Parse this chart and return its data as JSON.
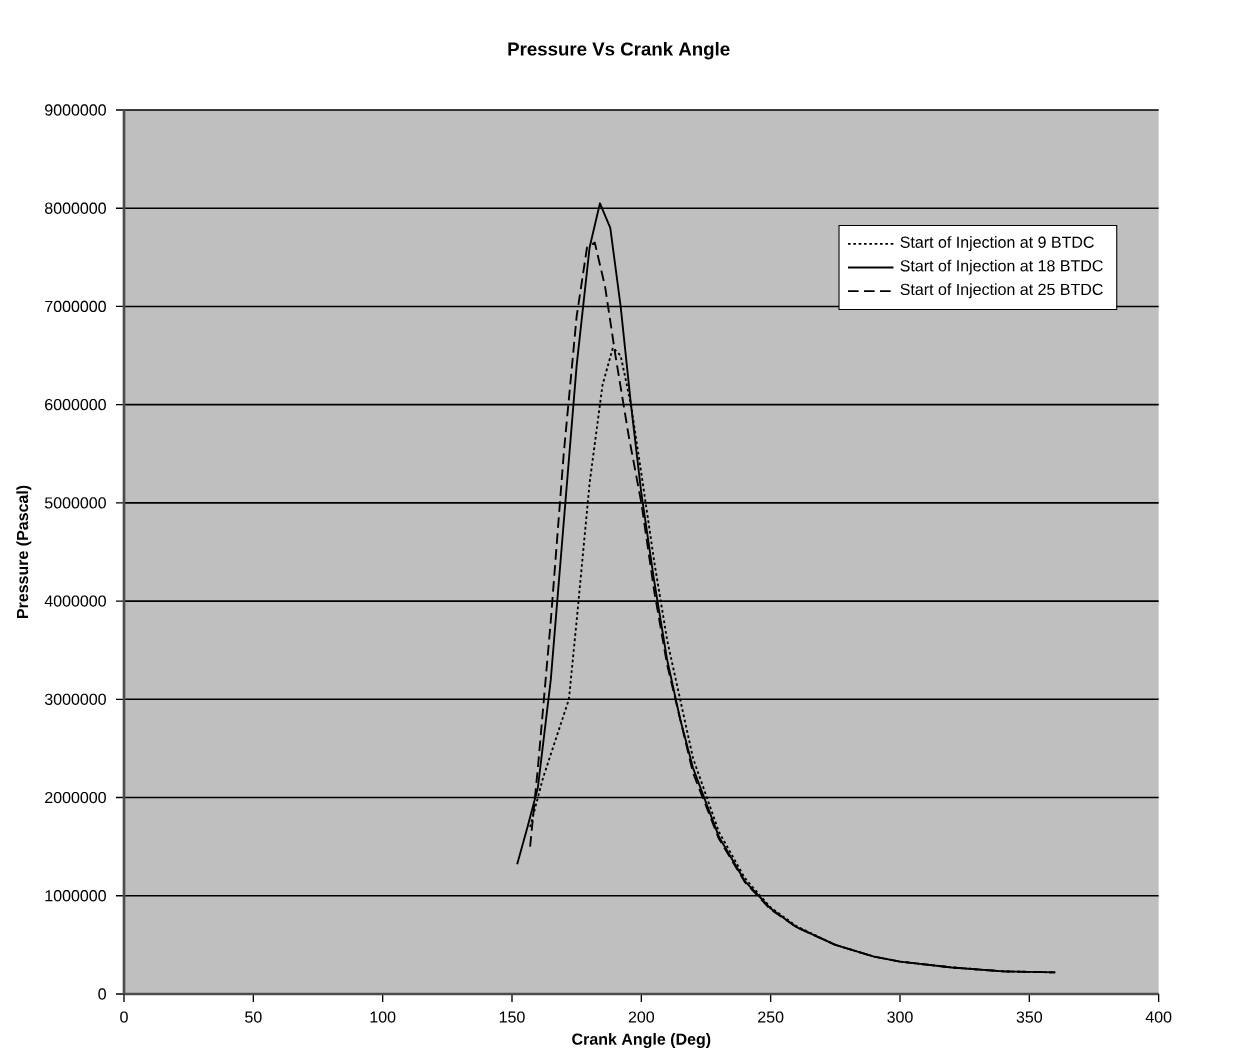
{
  "chart_data": {
    "type": "line",
    "title": "Pressure Vs Crank Angle",
    "xlabel": "Crank Angle (Deg)",
    "ylabel": "Pressure (Pascal)",
    "xlim": [
      0,
      400
    ],
    "xticks": [
      0,
      50,
      100,
      150,
      200,
      250,
      300,
      350,
      400
    ],
    "ylim": [
      0,
      9000000
    ],
    "yticks": [
      0,
      1000000,
      2000000,
      3000000,
      4000000,
      5000000,
      6000000,
      7000000,
      8000000,
      9000000
    ],
    "grid": "y",
    "legend": "top right",
    "marker": "none",
    "series": [
      {
        "name": "Start of Injection at 9 BTDC",
        "color": "#000000",
        "line_style": "dotted",
        "x": [
          157,
          162,
          167,
          172,
          175,
          180,
          185,
          189,
          192,
          196,
          200,
          205,
          210,
          220,
          230,
          240,
          250,
          260,
          275,
          290,
          300,
          320,
          340,
          360
        ],
        "values": [
          1700000,
          2200000,
          2600000,
          3000000,
          3800000,
          5200000,
          6200000,
          6580000,
          6500000,
          6000000,
          5300000,
          4400000,
          3600000,
          2400000,
          1650000,
          1180000,
          880000,
          690000,
          500000,
          380000,
          330000,
          270000,
          230000,
          220000
        ]
      },
      {
        "name": "Start of Injection at 18 BTDC",
        "color": "#000000",
        "line_style": "solid",
        "x": [
          152,
          156,
          160,
          165,
          170,
          175,
          180,
          184,
          188,
          192,
          196,
          200,
          205,
          210,
          215,
          220,
          230,
          240,
          250,
          260,
          275,
          290,
          300,
          320,
          340,
          360
        ],
        "values": [
          1320000,
          1700000,
          2100000,
          3200000,
          4800000,
          6400000,
          7600000,
          8050000,
          7800000,
          7000000,
          6000000,
          5100000,
          4200000,
          3400000,
          2800000,
          2300000,
          1600000,
          1150000,
          870000,
          680000,
          500000,
          380000,
          330000,
          270000,
          230000,
          220000
        ]
      },
      {
        "name": "Start of Injection at 25 BTDC",
        "color": "#000000",
        "line_style": "dashed",
        "x": [
          157,
          160,
          165,
          170,
          175,
          179,
          182,
          186,
          190,
          195,
          200,
          205,
          210,
          220,
          230,
          240,
          250,
          260,
          275,
          290,
          300,
          320,
          340,
          360
        ],
        "values": [
          1500000,
          2300000,
          3800000,
          5500000,
          6900000,
          7600000,
          7650000,
          7200000,
          6500000,
          5700000,
          5000000,
          4100000,
          3350000,
          2250000,
          1580000,
          1140000,
          860000,
          680000,
          500000,
          380000,
          330000,
          270000,
          230000,
          220000
        ]
      }
    ]
  }
}
